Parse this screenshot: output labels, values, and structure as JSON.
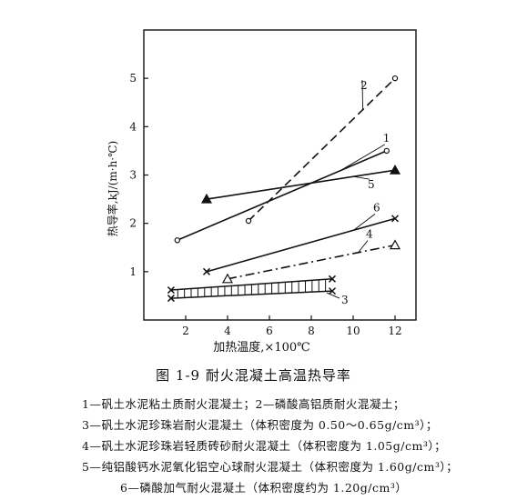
{
  "figure": {
    "caption": "图 1-9   耐火混凝土高温热导率",
    "legend": [
      "1—矾土水泥粘土质耐火混凝土；2—磷酸高铝质耐火混凝土；",
      "3—矾土水泥珍珠岩耐火混凝土（体积密度为 0.50～0.65g/cm³）；",
      "4—矾土水泥珍珠岩轻质砖砂耐火混凝土（体积密度为 1.05g/cm³）；",
      "5—纯铝酸钙水泥氧化铝空心球耐火混凝土（体积密度为 1.60g/cm³）；",
      "6—磷酸加气耐火混凝土（体积密度约为 1.20g/cm³）"
    ]
  },
  "chart_data": {
    "type": "line",
    "xlabel": "加热温度,×100℃",
    "ylabel": "热导率,kJ/(m·h·℃)",
    "xlim": [
      0,
      13
    ],
    "ylim": [
      0,
      6
    ],
    "xticks": [
      2,
      4,
      6,
      8,
      10,
      12
    ],
    "yticks": [
      1,
      2,
      3,
      4,
      5
    ],
    "series": [
      {
        "name": "1",
        "marker": "circle",
        "dash": "solid",
        "x": [
          1.6,
          11.6
        ],
        "y": [
          1.65,
          3.5
        ]
      },
      {
        "name": "2",
        "marker": "circle",
        "dash": "dashed",
        "x": [
          5.0,
          12.0
        ],
        "y": [
          2.05,
          5.0
        ]
      },
      {
        "name": "3",
        "marker": "x",
        "dash": "band",
        "x": [
          1.3,
          9.0
        ],
        "y_top": [
          0.62,
          0.85
        ],
        "y_bottom": [
          0.45,
          0.6
        ]
      },
      {
        "name": "4",
        "marker": "triangle-open",
        "dash": "dashdot",
        "x": [
          4.0,
          12.0
        ],
        "y": [
          0.85,
          1.55
        ]
      },
      {
        "name": "5",
        "marker": "triangle-filled",
        "dash": "solid",
        "x": [
          3.0,
          12.0
        ],
        "y": [
          2.5,
          3.1
        ]
      },
      {
        "name": "6",
        "marker": "x",
        "dash": "solid",
        "x": [
          3.0,
          12.0
        ],
        "y": [
          1.0,
          2.1
        ]
      }
    ]
  }
}
